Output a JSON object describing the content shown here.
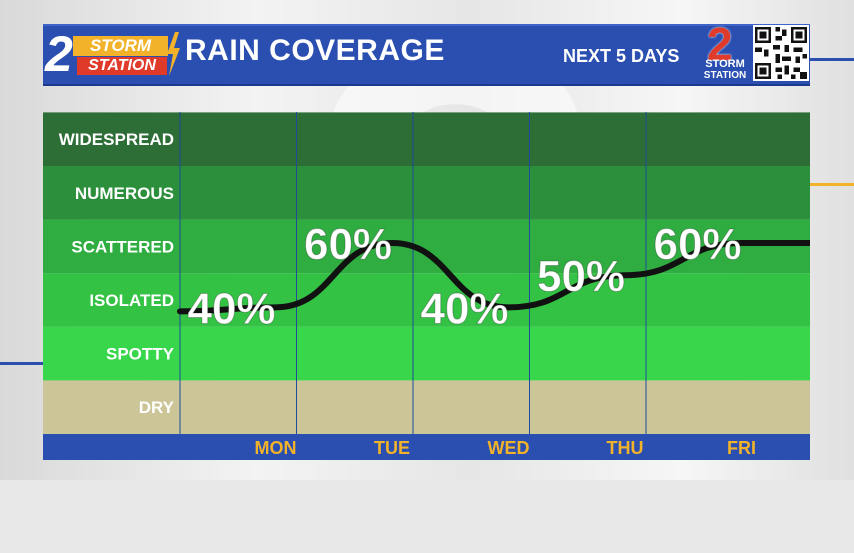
{
  "header": {
    "logo_number": "2",
    "logo_line1": "STORM",
    "logo_line2": "STATION",
    "title": "RAIN COVERAGE",
    "subtitle": "NEXT 5 DAYS"
  },
  "colors": {
    "header_blue": "#2a4fb0",
    "day_label": "#f2b229",
    "dry_band": "#cbc598",
    "line": "#111111"
  },
  "chart_data": {
    "type": "line",
    "title": "RAIN COVERAGE",
    "categories": [
      "MON",
      "TUE",
      "WED",
      "THU",
      "FRI"
    ],
    "values": [
      40,
      60,
      40,
      50,
      60
    ],
    "data_labels": [
      "40%",
      "60%",
      "40%",
      "50%",
      "60%"
    ],
    "y_categories": [
      "DRY",
      "SPOTTY",
      "ISOLATED",
      "SCATTERED",
      "NUMEROUS",
      "WIDESPREAD"
    ],
    "ylim": [
      0,
      100
    ],
    "band_colors": [
      "#cbc598",
      "#38d64a",
      "#33c244",
      "#2fad40",
      "#2b8f3b",
      "#2d6e37"
    ],
    "grid": true,
    "legend": "none"
  }
}
